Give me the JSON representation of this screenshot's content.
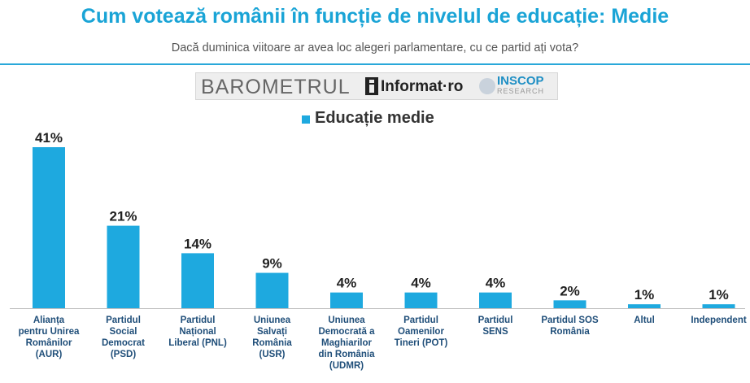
{
  "title": "Cum votează românii în funcție de nivelul de educație: Medie",
  "subtitle": "Dacă duminica viitoare ar avea loc alegeri parlamentare, cu ce partid ați vota?",
  "logo": {
    "barometrul": "BAROMETRUL",
    "informat": "Informat·ro",
    "inscop": "INSCOP",
    "research": "RESEARCH"
  },
  "colors": {
    "bar": "#1ea9df",
    "title": "#1aa4d6"
  },
  "chart_data": {
    "type": "bar",
    "categories": [
      [
        "Alianța",
        "pentru Unirea",
        "Românilor",
        "(AUR)"
      ],
      [
        "Partidul",
        "Social",
        "Democrat",
        "(PSD)"
      ],
      [
        "Partidul",
        "Național",
        "Liberal (PNL)"
      ],
      [
        "Uniunea",
        "Salvați",
        "România",
        "(USR)"
      ],
      [
        "Uniunea",
        "Democrată a",
        "Maghiarilor",
        "din România",
        "(UDMR)"
      ],
      [
        "Partidul",
        "Oamenilor",
        "Tineri (POT)"
      ],
      [
        "Partidul",
        "SENS"
      ],
      [
        "Partidul SOS",
        "România"
      ],
      [
        "Altul"
      ],
      [
        "Independent"
      ]
    ],
    "series": [
      {
        "name": "Educație medie",
        "values": [
          41,
          21,
          14,
          9,
          4,
          4,
          4,
          2,
          1,
          1
        ]
      }
    ],
    "value_labels": [
      "41%",
      "21%",
      "14%",
      "9%",
      "4%",
      "4%",
      "4%",
      "2%",
      "1%",
      "1%"
    ],
    "ylim": [
      0,
      41
    ],
    "grid": false,
    "legend_position": "top-center"
  }
}
